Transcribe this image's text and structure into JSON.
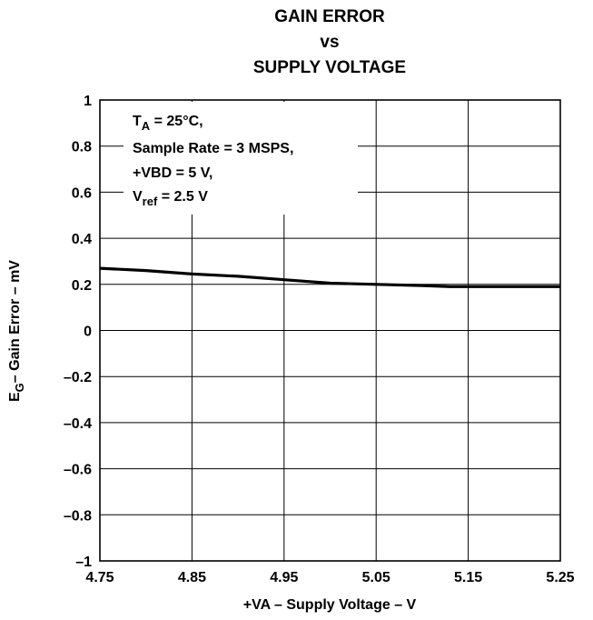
{
  "chart_data": {
    "type": "line",
    "title": [
      "GAIN ERROR",
      "vs",
      "SUPPLY VOLTAGE"
    ],
    "xlabel": "+VA – Supply Voltage – V",
    "ylabel": {
      "main": "E",
      "sub": "G",
      "rest": "– Gain Error – mV"
    },
    "xlim": [
      4.75,
      5.25
    ],
    "ylim": [
      -1,
      1
    ],
    "x_ticks": [
      4.75,
      4.85,
      4.95,
      5.05,
      5.15,
      5.25
    ],
    "x_tick_labels": [
      "4.75",
      "4.85",
      "4.95",
      "5.05",
      "5.15",
      "5.25"
    ],
    "y_ticks": [
      -1,
      -0.8,
      -0.6,
      -0.4,
      -0.2,
      0,
      0.2,
      0.4,
      0.6,
      0.8,
      1
    ],
    "y_tick_labels": [
      "–1",
      "–0.8",
      "–0.6",
      "–0.4",
      "–0.2",
      "0",
      "0.2",
      "0.4",
      "0.6",
      "0.8",
      "1"
    ],
    "grid": true,
    "series": [
      {
        "x": [
          4.75,
          4.8,
          4.85,
          4.9,
          4.95,
          5.0,
          5.05,
          5.1,
          5.13,
          5.15,
          5.2,
          5.25
        ],
        "y": [
          0.27,
          0.26,
          0.245,
          0.235,
          0.22,
          0.205,
          0.2,
          0.195,
          0.19,
          0.19,
          0.19,
          0.19
        ]
      }
    ],
    "annotation": {
      "line1": {
        "main": "T",
        "sub": "A",
        "rest": " = 25°C,"
      },
      "line2": "Sample Rate = 3 MSPS,",
      "line3": "+VBD = 5 V,",
      "line4": {
        "main": "V",
        "sub": "ref",
        "rest": " = 2.5 V"
      }
    }
  }
}
